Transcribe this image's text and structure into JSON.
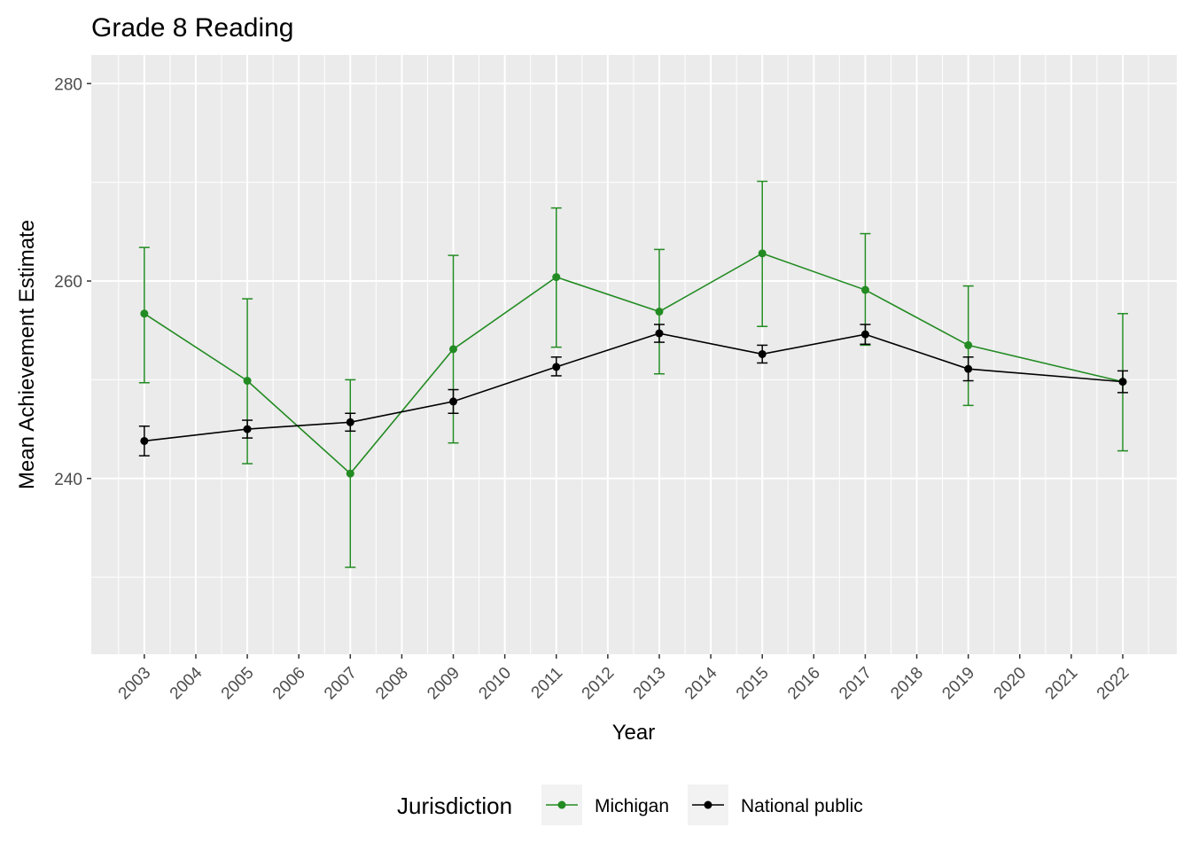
{
  "chart_data": {
    "type": "line",
    "title": "Grade 8 Reading",
    "xlabel": "Year",
    "ylabel": "Mean Achievement Estimate",
    "xlim": [
      2001.97,
      2023.05
    ],
    "ylim": [
      222.2,
      282.9
    ],
    "x_ticks": [
      2003,
      2004,
      2005,
      2006,
      2007,
      2008,
      2009,
      2010,
      2011,
      2012,
      2013,
      2014,
      2015,
      2016,
      2017,
      2018,
      2019,
      2020,
      2021,
      2022
    ],
    "y_ticks": [
      240,
      260,
      280
    ],
    "grid": true,
    "legend": {
      "title": "Jurisdiction",
      "position": "bottom"
    },
    "series": [
      {
        "name": "Michigan",
        "color": "#228B22",
        "x": [
          2003,
          2005,
          2007,
          2009,
          2011,
          2013,
          2015,
          2017,
          2019,
          2022
        ],
        "y": [
          256.7,
          249.9,
          240.5,
          253.1,
          260.4,
          256.9,
          262.8,
          259.1,
          253.5,
          249.8
        ],
        "upper": [
          263.4,
          258.2,
          250.0,
          262.6,
          267.4,
          263.2,
          270.1,
          264.8,
          259.5,
          256.7
        ],
        "lower": [
          249.7,
          241.5,
          231.0,
          243.6,
          253.3,
          250.6,
          255.4,
          253.5,
          247.4,
          242.8
        ]
      },
      {
        "name": "National public",
        "color": "#000000",
        "x": [
          2003,
          2005,
          2007,
          2009,
          2011,
          2013,
          2015,
          2017,
          2019,
          2022
        ],
        "y": [
          243.8,
          245.0,
          245.7,
          247.8,
          251.3,
          254.7,
          252.6,
          254.6,
          251.1,
          249.8
        ],
        "upper": [
          245.3,
          245.9,
          246.6,
          249.0,
          252.3,
          255.6,
          253.5,
          255.6,
          252.3,
          250.9
        ],
        "lower": [
          242.3,
          244.1,
          244.8,
          246.6,
          250.4,
          253.8,
          251.7,
          253.6,
          249.9,
          248.7
        ]
      }
    ]
  }
}
